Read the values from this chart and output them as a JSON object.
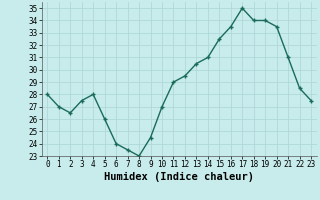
{
  "x": [
    0,
    1,
    2,
    3,
    4,
    5,
    6,
    7,
    8,
    9,
    10,
    11,
    12,
    13,
    14,
    15,
    16,
    17,
    18,
    19,
    20,
    21,
    22,
    23
  ],
  "y": [
    28,
    27,
    26.5,
    27.5,
    28,
    26,
    24,
    23.5,
    23,
    24.5,
    27,
    29,
    29.5,
    30.5,
    31,
    32.5,
    33.5,
    35,
    34,
    34,
    33.5,
    31,
    28.5,
    27.5
  ],
  "title": "",
  "xlabel": "Humidex (Indice chaleur)",
  "ylabel": "",
  "line_color": "#1a6b5a",
  "marker": "+",
  "bg_color": "#c8ecec",
  "grid_color": "#b0d8d8",
  "ylim": [
    23,
    35.5
  ],
  "xlim": [
    -0.5,
    23.5
  ],
  "yticks": [
    23,
    24,
    25,
    26,
    27,
    28,
    29,
    30,
    31,
    32,
    33,
    34,
    35
  ],
  "xticks": [
    0,
    1,
    2,
    3,
    4,
    5,
    6,
    7,
    8,
    9,
    10,
    11,
    12,
    13,
    14,
    15,
    16,
    17,
    18,
    19,
    20,
    21,
    22,
    23
  ],
  "tick_labelsize": 5.5,
  "xlabel_fontsize": 7.5,
  "linewidth": 1.0,
  "markersize": 3.5
}
